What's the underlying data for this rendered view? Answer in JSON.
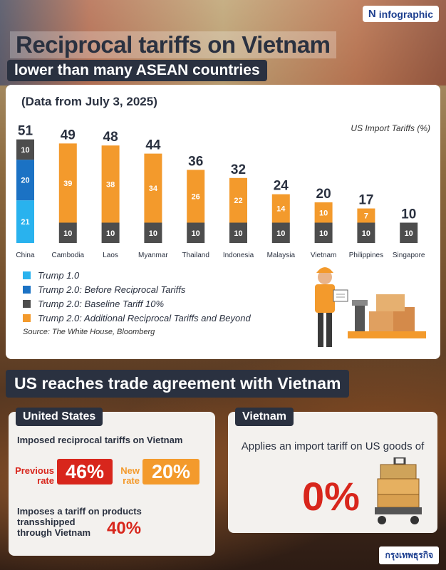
{
  "header": {
    "brand": "infographic",
    "title": "Reciprocal tariffs on Vietnam",
    "subtitle": "lower than many ASEAN countries"
  },
  "chart_card": {
    "date_label": "(Data from July 3, 2025)",
    "source": "Source: The White House, Bloomberg"
  },
  "chart_data": {
    "type": "bar",
    "stacked": true,
    "ylabel": "US Import Tariffs (%)",
    "categories": [
      "China",
      "Cambodia",
      "Laos",
      "Myanmar",
      "Thailand",
      "Indonesia",
      "Malaysia",
      "Vietnam",
      "Philippines",
      "Singapore"
    ],
    "totals": [
      51,
      49,
      48,
      44,
      36,
      32,
      24,
      20,
      17,
      10
    ],
    "series": [
      {
        "name": "Trump 2.0: Baseline Tariff 10%",
        "color": "#4d4d4d",
        "values": [
          10,
          10,
          10,
          10,
          10,
          10,
          10,
          10,
          10,
          10
        ]
      },
      {
        "name": "Trump 2.0: Additional Reciprocal Tariffs and Beyond",
        "color": "#f39a2c",
        "values": [
          0,
          39,
          38,
          34,
          26,
          22,
          14,
          10,
          7,
          0
        ]
      },
      {
        "name": "Trump 2.0: Before Reciprocal Tariffs",
        "color": "#1b72c4",
        "values": [
          20,
          0,
          0,
          0,
          0,
          0,
          0,
          0,
          0,
          0
        ]
      },
      {
        "name": "Trump 1.0",
        "color": "#29b2ee",
        "values": [
          21,
          0,
          0,
          0,
          0,
          0,
          0,
          0,
          0,
          0
        ]
      }
    ],
    "china_stack_top_to_bottom": [
      10,
      20,
      21
    ],
    "legend": [
      {
        "label": "Trump 1.0",
        "color": "#29b2ee"
      },
      {
        "label": "Trump 2.0: Before Reciprocal Tariffs",
        "color": "#1b72c4"
      },
      {
        "label": "Trump 2.0: Baseline Tariff 10%",
        "color": "#4d4d4d"
      },
      {
        "label": "Trump 2.0: Additional Reciprocal Tariffs and Beyond",
        "color": "#f39a2c"
      }
    ],
    "legend_position": "bottom-left",
    "grid": false,
    "ylim": [
      0,
      55
    ]
  },
  "agreement": {
    "section_title": "US reaches trade agreement with Vietnam",
    "us": {
      "tag": "United States",
      "imposed_text": "Imposed reciprocal tariffs on Vietnam",
      "previous_label": "Previous rate",
      "previous_rate": "46%",
      "new_label": "New rate",
      "new_rate": "20%",
      "transship_text": "Imposes a tariff on products transshipped",
      "transship_text2": "through Vietnam",
      "transship_rate": "40%"
    },
    "vietnam": {
      "tag": "Vietnam",
      "text": "Applies an import tariff on US goods of",
      "rate": "0%"
    }
  },
  "footer": {
    "brand": "กรุงเทพธุรกิจ"
  }
}
